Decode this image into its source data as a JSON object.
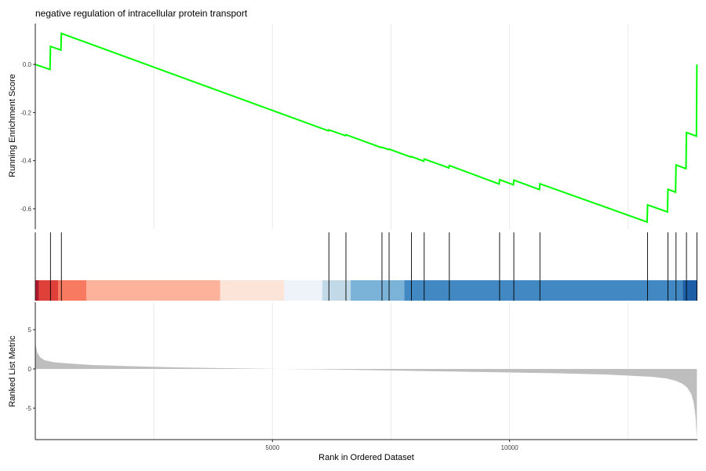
{
  "chart_data": {
    "type": "line",
    "title": "negative regulation of intracellular protein transport",
    "xlabel": "Rank in Ordered Dataset",
    "x_ticks": [
      5000,
      10000
    ],
    "xlim": [
      0,
      13960
    ],
    "grid": true,
    "legend": "none",
    "colors": {
      "curve": "#00ff00",
      "grid": "#ebebeb",
      "axis": "#222222",
      "metric_fill": "#bebebe",
      "hit_line": "#000000"
    },
    "panels": {
      "enrichment": {
        "ylabel": "Running Enrichment Score",
        "ylim": [
          -0.685,
          0.17
        ],
        "y_ticks": [
          0.0,
          -0.2,
          -0.4,
          -0.6
        ],
        "y_tick_labels": [
          "0.0",
          "-0.2",
          "-0.4",
          "-0.6"
        ],
        "x": [
          0,
          310,
          320,
          540,
          550,
          6180,
          6190,
          6540,
          6550,
          7300,
          7310,
          7450,
          7460,
          7920,
          7930,
          8190,
          8200,
          8720,
          8730,
          9780,
          9790,
          10080,
          10090,
          10630,
          10640,
          12900,
          12910,
          13330,
          13340,
          13500,
          13510,
          13720,
          13730,
          13940,
          13950
        ],
        "y": [
          0.0,
          -0.021,
          0.075,
          0.06,
          0.129,
          -0.276,
          -0.272,
          -0.296,
          -0.292,
          -0.346,
          -0.344,
          -0.354,
          -0.352,
          -0.385,
          -0.383,
          -0.402,
          -0.393,
          -0.43,
          -0.42,
          -0.497,
          -0.479,
          -0.5,
          -0.481,
          -0.52,
          -0.496,
          -0.655,
          -0.584,
          -0.613,
          -0.519,
          -0.531,
          -0.418,
          -0.433,
          -0.283,
          -0.298,
          0.0
        ]
      },
      "hits": {
        "positions": [
          320,
          550,
          6190,
          6550,
          7310,
          7460,
          7930,
          8200,
          8730,
          9790,
          10090,
          10640,
          12910,
          13340,
          13510,
          13730,
          13950
        ]
      },
      "color_bar": {
        "segments": [
          {
            "start": 0,
            "end": 80,
            "color": "#b2182b"
          },
          {
            "start": 80,
            "end": 480,
            "color": "#e0403a"
          },
          {
            "start": 480,
            "end": 1080,
            "color": "#f87a61"
          },
          {
            "start": 1080,
            "end": 3900,
            "color": "#fdb39b"
          },
          {
            "start": 3900,
            "end": 5250,
            "color": "#fde4d9"
          },
          {
            "start": 5250,
            "end": 6050,
            "color": "#eef3fa"
          },
          {
            "start": 6050,
            "end": 6650,
            "color": "#c2d9e8"
          },
          {
            "start": 6650,
            "end": 7780,
            "color": "#7bb3d8"
          },
          {
            "start": 7780,
            "end": 13650,
            "color": "#4289c3"
          },
          {
            "start": 13650,
            "end": 13960,
            "color": "#1c5fa6"
          }
        ]
      },
      "metric": {
        "ylabel": "Ranked List Metric",
        "ylim": [
          -9.0,
          8.5
        ],
        "y_ticks": [
          5,
          0,
          -5
        ],
        "y_tick_labels": [
          "5",
          "0",
          "-5"
        ],
        "x": [
          0,
          40,
          100,
          200,
          400,
          700,
          1200,
          2000,
          3000,
          4500,
          6000,
          7000,
          8000,
          9000,
          10000,
          11000,
          12000,
          12500,
          13000,
          13300,
          13500,
          13650,
          13750,
          13830,
          13880,
          13920,
          13950
        ],
        "y": [
          3.3,
          2.1,
          1.5,
          1.1,
          0.85,
          0.7,
          0.5,
          0.35,
          0.2,
          0.05,
          -0.05,
          -0.15,
          -0.25,
          -0.35,
          -0.45,
          -0.55,
          -0.7,
          -0.85,
          -1.0,
          -1.2,
          -1.5,
          -1.9,
          -2.4,
          -3.2,
          -4.2,
          -6.0,
          -8.8
        ]
      }
    }
  }
}
